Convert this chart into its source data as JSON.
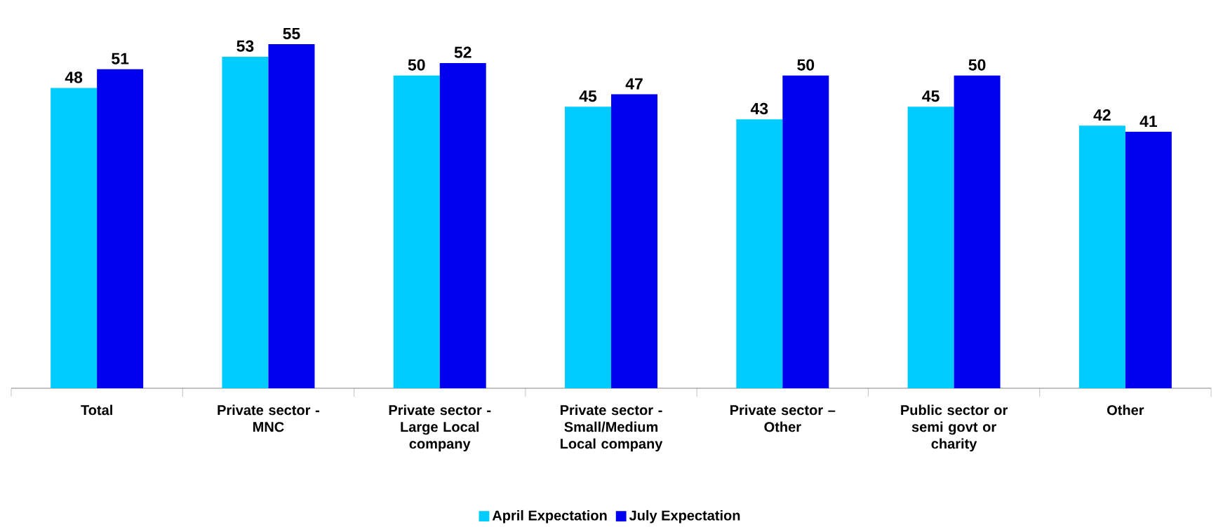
{
  "chart_data": {
    "type": "bar",
    "categories": [
      "Total",
      "Private sector - MNC",
      "Private sector - Large Local company",
      "Private sector - Small/Medium Local company",
      "Private sector – Other",
      "Public sector or semi govt or charity",
      "Other"
    ],
    "series": [
      {
        "name": "April Expectation",
        "color": "#00ccff",
        "values": [
          48,
          53,
          50,
          45,
          43,
          45,
          42
        ]
      },
      {
        "name": "July Expectation",
        "color": "#0000ee",
        "values": [
          51,
          55,
          52,
          47,
          50,
          50,
          41
        ]
      }
    ],
    "data_labels": true,
    "legend": "bottom"
  }
}
